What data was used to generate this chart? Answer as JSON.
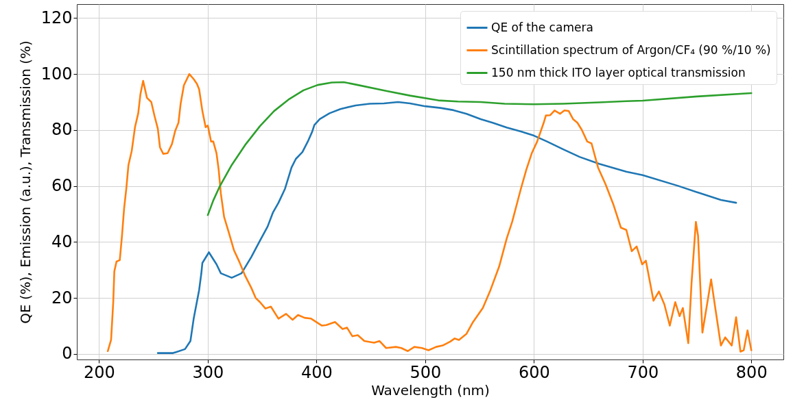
{
  "chart_data": {
    "type": "line",
    "xlabel": "Wavelength (nm)",
    "ylabel": "QE (%), Emission (a.u.), Transmission (%)",
    "xlim": [
      179.5,
      829.5
    ],
    "ylim": [
      -2,
      125
    ],
    "xticks": [
      200,
      300,
      400,
      500,
      600,
      700,
      800
    ],
    "yticks": [
      0,
      20,
      40,
      60,
      80,
      100,
      120
    ],
    "grid": true,
    "legend": "top right",
    "series": [
      {
        "name": "QE of the camera",
        "color": "#1f77b4",
        "x": [
          254,
          268,
          279,
          284,
          287,
          292,
          294,
          295,
          301,
          308,
          312,
          322,
          331,
          340,
          348,
          355,
          360,
          365,
          371,
          377,
          381,
          387,
          392,
          396,
          398,
          403,
          412,
          422,
          436,
          449,
          462,
          475,
          486,
          500,
          514,
          526,
          538,
          551,
          562,
          575,
          588,
          600,
          612,
          627,
          642,
          660,
          685,
          700,
          733,
          757,
          772,
          786
        ],
        "values": [
          0.3,
          0.3,
          1.7,
          4.6,
          12.6,
          22.8,
          28.7,
          32.5,
          36.3,
          32,
          28.8,
          27.2,
          28.8,
          34.6,
          40.5,
          45.5,
          50.6,
          54,
          59,
          66.6,
          69.7,
          72.1,
          75.9,
          79.4,
          81.8,
          83.9,
          86,
          87.5,
          88.8,
          89.4,
          89.5,
          90,
          89.5,
          88.5,
          87.9,
          87.1,
          85.8,
          83.9,
          82.6,
          80.9,
          79.5,
          78,
          75.9,
          73.1,
          70.4,
          67.9,
          65.1,
          63.9,
          60,
          56.9,
          55,
          54
        ]
      },
      {
        "name": "Scintillation spectrum of Argon/CF₄ (90 %/10 %)",
        "color": "#ff7f0e",
        "x": [
          208,
          211,
          213,
          214,
          216,
          219,
          221,
          223,
          225,
          227,
          230,
          233,
          236,
          238,
          240.5,
          242,
          244,
          248,
          251,
          254,
          256,
          259,
          263,
          267,
          270,
          273,
          275,
          278,
          283,
          287,
          290,
          292,
          295,
          298,
          300,
          303,
          305,
          308,
          310,
          312,
          315,
          319,
          324,
          329,
          334,
          340,
          344,
          348,
          353,
          358,
          365,
          372,
          378,
          383,
          389,
          395,
          405,
          409,
          417,
          424,
          428,
          433,
          438,
          444,
          453,
          458,
          464,
          473,
          478,
          484,
          490,
          497,
          503,
          510,
          516,
          523,
          527,
          531,
          538,
          544,
          553,
          560,
          568,
          575,
          580,
          588,
          593,
          598,
          603,
          609,
          611,
          615,
          619,
          624,
          628,
          632,
          636,
          640,
          644,
          649,
          653,
          659,
          666,
          673,
          680,
          685,
          690,
          694.5,
          699.6,
          703,
          710,
          715,
          720,
          725,
          730,
          734,
          737,
          742,
          745,
          749,
          751,
          755,
          760,
          763,
          767,
          772,
          776,
          782,
          786,
          790,
          793,
          796.5,
          800
        ],
        "values": [
          1,
          5,
          18.5,
          29.5,
          33,
          33.5,
          42,
          52,
          59,
          67.5,
          72.5,
          81,
          86,
          92.8,
          97.6,
          95,
          91.5,
          90,
          85,
          80.5,
          73.8,
          71.5,
          71.7,
          75,
          79.7,
          82.6,
          89.4,
          96,
          100,
          98.2,
          96.5,
          94.6,
          86.8,
          81,
          81.6,
          75.9,
          75.9,
          71.7,
          65.8,
          57.3,
          48.9,
          43.8,
          37.1,
          32.9,
          28.2,
          23.6,
          20,
          18.5,
          16.2,
          16.9,
          12.6,
          14.3,
          12.2,
          13.9,
          12.9,
          12.6,
          10.1,
          10.3,
          11.4,
          8.9,
          9.4,
          6.3,
          6.7,
          4.6,
          4,
          4.6,
          2.1,
          2.5,
          2.1,
          1,
          2.5,
          2.1,
          1.3,
          2.5,
          3,
          4.4,
          5.5,
          5,
          7.2,
          11.4,
          16.4,
          22.8,
          31.2,
          41.3,
          47.2,
          59,
          65.8,
          71.7,
          75.9,
          82.6,
          85.2,
          85.3,
          87,
          85.8,
          87,
          86.8,
          83.9,
          82.6,
          80.1,
          75.9,
          75.2,
          66.6,
          60.5,
          53.5,
          45.1,
          44.3,
          36.7,
          38.4,
          32,
          33.3,
          19,
          22.3,
          17.7,
          10.1,
          18.5,
          13.5,
          16.4,
          3.8,
          25.3,
          47.2,
          42.2,
          7.6,
          19.4,
          26.6,
          16,
          3,
          5.9,
          3,
          13.1,
          0.8,
          1.3,
          8.4,
          1.3
        ]
      },
      {
        "name": "150 nm thick ITO layer optical transmission",
        "color": "#2ca02c",
        "x": [
          300,
          305,
          311,
          322,
          335,
          348,
          361,
          375,
          388,
          401,
          414,
          425,
          438,
          464,
          486,
          512,
          530,
          551,
          573,
          600,
          627,
          660,
          685,
          700,
          750,
          800
        ],
        "values": [
          49.6,
          54.8,
          59.9,
          67.5,
          75,
          81.4,
          86.8,
          91.1,
          94.2,
          96.1,
          97,
          97.1,
          96.1,
          94,
          92.3,
          90.6,
          90.2,
          90,
          89.4,
          89.2,
          89.4,
          89.9,
          90.3,
          90.5,
          92,
          93.2
        ]
      }
    ]
  }
}
